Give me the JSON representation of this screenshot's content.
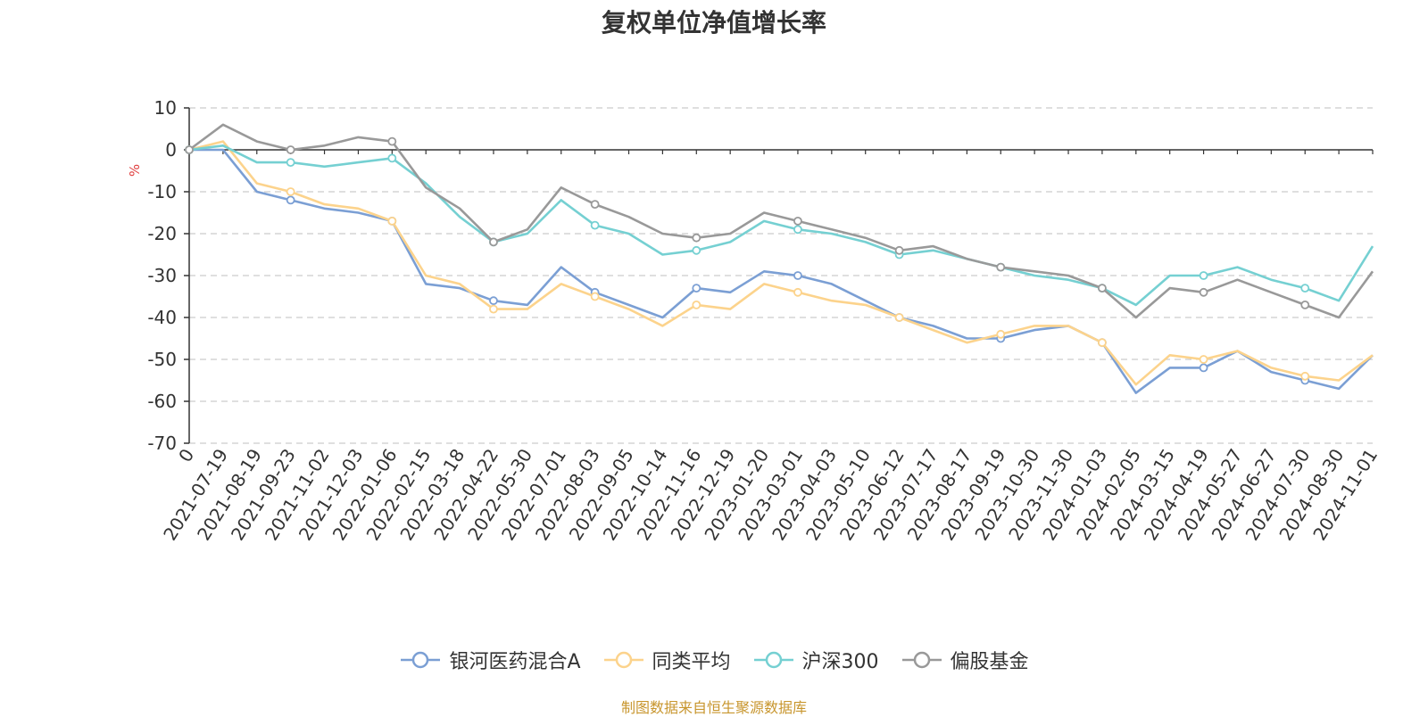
{
  "chart_data": {
    "type": "line",
    "title": "复权单位净值增长率",
    "ylabel": "%",
    "ylim": [
      -70,
      10
    ],
    "yticks": [
      10,
      0,
      -10,
      -20,
      -30,
      -40,
      -50,
      -60,
      -70
    ],
    "grid": true,
    "legend_position": "bottom",
    "x": [
      "0",
      "2021-07-19",
      "2021-08-19",
      "2021-09-23",
      "2021-11-02",
      "2021-12-03",
      "2022-01-06",
      "2022-02-15",
      "2022-03-18",
      "2022-04-22",
      "2022-05-30",
      "2022-07-01",
      "2022-08-03",
      "2022-09-05",
      "2022-10-14",
      "2022-11-16",
      "2022-12-19",
      "2023-01-20",
      "2023-03-01",
      "2023-04-03",
      "2023-05-10",
      "2023-06-12",
      "2023-07-17",
      "2023-08-17",
      "2023-09-19",
      "2023-10-30",
      "2023-11-30",
      "2024-01-03",
      "2024-02-05",
      "2024-03-15",
      "2024-04-19",
      "2024-05-27",
      "2024-06-27",
      "2024-07-30",
      "2024-08-30",
      "2024-11-01"
    ],
    "series": [
      {
        "name": "银河医药混合A",
        "color": "#7b9fd4",
        "values": [
          0,
          0,
          -10,
          -12,
          -14,
          -15,
          -17,
          -32,
          -33,
          -36,
          -37,
          -28,
          -34,
          -37,
          -40,
          -33,
          -34,
          -29,
          -30,
          -32,
          -36,
          -40,
          -42,
          -45,
          -45,
          -43,
          -42,
          -46,
          -58,
          -52,
          -52,
          -48,
          -53,
          -55,
          -57,
          -49
        ]
      },
      {
        "name": "同类平均",
        "color": "#fcd38c",
        "values": [
          0,
          2,
          -8,
          -10,
          -13,
          -14,
          -17,
          -30,
          -32,
          -38,
          -38,
          -32,
          -35,
          -38,
          -42,
          -37,
          -38,
          -32,
          -34,
          -36,
          -37,
          -40,
          -43,
          -46,
          -44,
          -42,
          -42,
          -46,
          -56,
          -49,
          -50,
          -48,
          -52,
          -54,
          -55,
          -49
        ]
      },
      {
        "name": "沪深300",
        "color": "#75d0d2",
        "values": [
          0,
          1,
          -3,
          -3,
          -4,
          -3,
          -2,
          -8,
          -16,
          -22,
          -20,
          -12,
          -18,
          -20,
          -25,
          -24,
          -22,
          -17,
          -19,
          -20,
          -22,
          -25,
          -24,
          -26,
          -28,
          -30,
          -31,
          -33,
          -37,
          -30,
          -30,
          -28,
          -31,
          -33,
          -36,
          -23
        ]
      },
      {
        "name": "偏股基金",
        "color": "#999999",
        "values": [
          0,
          6,
          2,
          0,
          1,
          3,
          2,
          -9,
          -14,
          -22,
          -19,
          -9,
          -13,
          -16,
          -20,
          -21,
          -20,
          -15,
          -17,
          -19,
          -21,
          -24,
          -23,
          -26,
          -28,
          -29,
          -30,
          -33,
          -40,
          -33,
          -34,
          -31,
          -34,
          -37,
          -40,
          -29
        ]
      }
    ]
  },
  "source_text": "制图数据来自恒生聚源数据库"
}
